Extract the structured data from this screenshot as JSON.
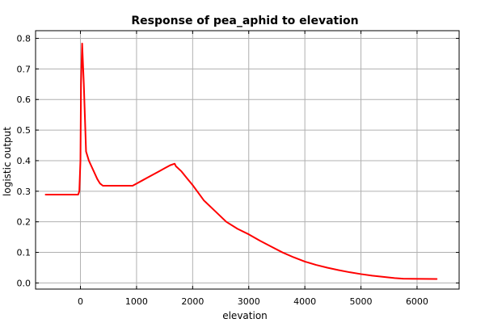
{
  "chart_data": {
    "type": "line",
    "title": "Response of pea_aphid to elevation",
    "xlabel": "elevation",
    "ylabel": "logistic output",
    "xlim": [
      -800,
      6750
    ],
    "ylim": [
      -0.02,
      0.825
    ],
    "xticks": [
      0,
      1000,
      2000,
      3000,
      4000,
      5000,
      6000
    ],
    "yticks": [
      0.0,
      0.1,
      0.2,
      0.3,
      0.4,
      0.5,
      0.6,
      0.7,
      0.8
    ],
    "grid": true,
    "color": "#ff0000",
    "series": [
      {
        "x": [
          -620,
          -40,
          -20,
          0,
          10,
          30,
          60,
          100,
          150,
          200,
          250,
          300,
          350,
          400,
          450,
          930,
          950,
          1000,
          1100,
          1200,
          1300,
          1400,
          1500,
          1600,
          1680,
          1700,
          1800,
          1900,
          2000,
          2100,
          2200,
          2400,
          2600,
          2800,
          3000,
          3200,
          3400,
          3600,
          3800,
          4000,
          4200,
          4400,
          4600,
          4800,
          5000,
          5200,
          5400,
          5600,
          5750,
          6350
        ],
        "y": [
          0.289,
          0.289,
          0.3,
          0.4,
          0.65,
          0.783,
          0.65,
          0.43,
          0.4,
          0.38,
          0.36,
          0.34,
          0.325,
          0.318,
          0.318,
          0.318,
          0.32,
          0.325,
          0.335,
          0.345,
          0.355,
          0.365,
          0.375,
          0.385,
          0.39,
          0.382,
          0.365,
          0.342,
          0.32,
          0.295,
          0.27,
          0.235,
          0.2,
          0.177,
          0.159,
          0.138,
          0.119,
          0.1,
          0.084,
          0.07,
          0.059,
          0.05,
          0.042,
          0.035,
          0.029,
          0.024,
          0.02,
          0.016,
          0.014,
          0.013
        ]
      }
    ]
  }
}
